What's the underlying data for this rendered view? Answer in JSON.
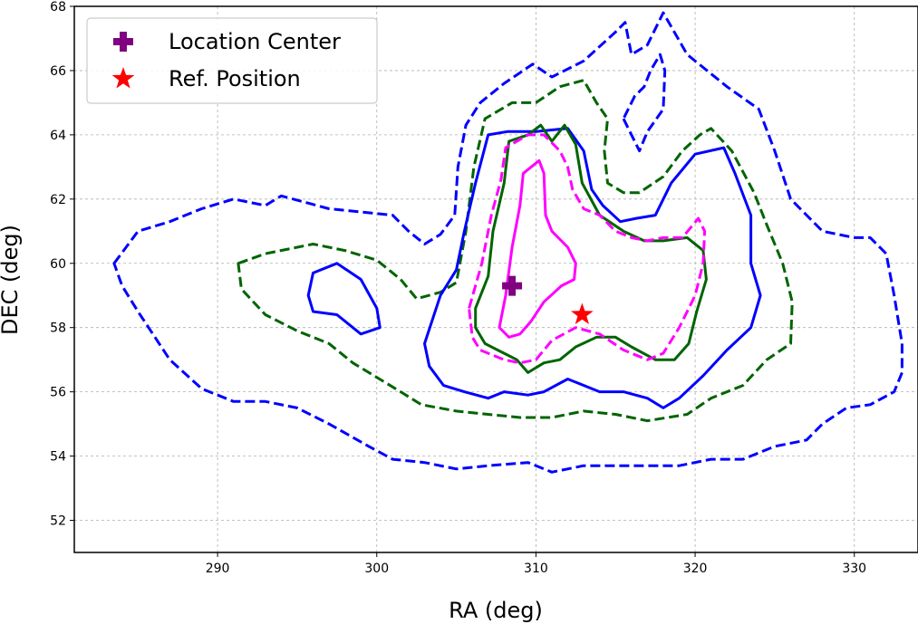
{
  "chart_data": {
    "type": "contour",
    "xlabel": "RA (deg)",
    "ylabel": "DEC (deg)",
    "xlim": [
      281,
      334
    ],
    "ylim": [
      51,
      68
    ],
    "xticks": [
      290,
      300,
      310,
      320,
      330
    ],
    "yticks": [
      52,
      54,
      56,
      58,
      60,
      62,
      64,
      66,
      68
    ],
    "grid": true,
    "legend_position": "top-left",
    "legend": [
      {
        "label": "Location Center",
        "marker": "plus",
        "color": "#800080"
      },
      {
        "label": "Ref. Position",
        "marker": "star",
        "color": "#ff0000"
      }
    ],
    "points": [
      {
        "name": "Location Center",
        "x": 308.5,
        "y": 59.3,
        "color": "#800080",
        "marker": "plus"
      },
      {
        "name": "Ref. Position",
        "x": 312.9,
        "y": 58.4,
        "color": "#ff0000",
        "marker": "star"
      }
    ],
    "contours": [
      {
        "color": "#0000ff",
        "style": "dashed",
        "points": [
          [
            283.5,
            60.0
          ],
          [
            285,
            61.0
          ],
          [
            287,
            61.3
          ],
          [
            289,
            61.7
          ],
          [
            291,
            62.0
          ],
          [
            293,
            61.8
          ],
          [
            294,
            62.1
          ],
          [
            297,
            61.7
          ],
          [
            299,
            61.6
          ],
          [
            301,
            61.5
          ],
          [
            302,
            61.0
          ],
          [
            303,
            60.6
          ],
          [
            304,
            60.9
          ],
          [
            304.9,
            61.5
          ],
          [
            305.1,
            63.0
          ],
          [
            305.6,
            64.3
          ],
          [
            306.5,
            65.0
          ],
          [
            308,
            65.6
          ],
          [
            309.8,
            66.2
          ],
          [
            311,
            65.8
          ],
          [
            313,
            66.3
          ],
          [
            315,
            67.2
          ],
          [
            315.6,
            67.5
          ],
          [
            316,
            66.5
          ],
          [
            317,
            66.8
          ],
          [
            318,
            67.8
          ],
          [
            319.5,
            66.5
          ],
          [
            322,
            65.5
          ],
          [
            324,
            64.8
          ],
          [
            325,
            63.5
          ],
          [
            326,
            62.0
          ],
          [
            328,
            61.0
          ],
          [
            330,
            60.8
          ],
          [
            331,
            60.8
          ],
          [
            332,
            60.3
          ],
          [
            332.5,
            59.0
          ],
          [
            333,
            57.5
          ],
          [
            333,
            56.6
          ],
          [
            332.5,
            56.0
          ],
          [
            331,
            55.6
          ],
          [
            329.5,
            55.5
          ],
          [
            328,
            55.0
          ],
          [
            327,
            54.5
          ],
          [
            325,
            54.3
          ],
          [
            323,
            53.9
          ],
          [
            321,
            53.9
          ],
          [
            319,
            53.7
          ],
          [
            317,
            53.7
          ],
          [
            315,
            53.7
          ],
          [
            313,
            53.7
          ],
          [
            311,
            53.5
          ],
          [
            309.5,
            53.8
          ],
          [
            307,
            53.7
          ],
          [
            305,
            53.6
          ],
          [
            303,
            53.8
          ],
          [
            301,
            53.9
          ],
          [
            299.5,
            54.3
          ],
          [
            297,
            55.0
          ],
          [
            295,
            55.5
          ],
          [
            293,
            55.7
          ],
          [
            291,
            55.7
          ],
          [
            289,
            56.1
          ],
          [
            287,
            57.0
          ],
          [
            285,
            58.5
          ],
          [
            284,
            59.3
          ],
          [
            283.5,
            60.0
          ]
        ]
      },
      {
        "color": "#0000ff",
        "style": "dashed",
        "points": [
          [
            315.5,
            64.5
          ],
          [
            316.5,
            63.5
          ],
          [
            317,
            64.1
          ],
          [
            318,
            64.8
          ],
          [
            318.1,
            66.0
          ],
          [
            317.8,
            66.5
          ],
          [
            317.2,
            66.0
          ],
          [
            316.8,
            65.5
          ],
          [
            316.2,
            65.2
          ],
          [
            315.5,
            64.5
          ]
        ]
      },
      {
        "color": "#006400",
        "style": "dashed",
        "points": [
          [
            291.3,
            60.0
          ],
          [
            293,
            60.3
          ],
          [
            296,
            60.6
          ],
          [
            298,
            60.4
          ],
          [
            300,
            60.1
          ],
          [
            301.5,
            59.5
          ],
          [
            302.5,
            58.9
          ],
          [
            304,
            59.1
          ],
          [
            305,
            59.4
          ],
          [
            305.6,
            61.0
          ],
          [
            306.1,
            63.0
          ],
          [
            306.8,
            64.5
          ],
          [
            308.5,
            65.0
          ],
          [
            310,
            65.0
          ],
          [
            311.5,
            65.5
          ],
          [
            313,
            65.7
          ],
          [
            313.8,
            65.0
          ],
          [
            314.5,
            64.5
          ],
          [
            314.3,
            63.5
          ],
          [
            314.5,
            62.5
          ],
          [
            315.5,
            62.2
          ],
          [
            316.5,
            62.2
          ],
          [
            318,
            62.7
          ],
          [
            319.2,
            63.5
          ],
          [
            320.3,
            64.0
          ],
          [
            321,
            64.2
          ],
          [
            322.3,
            63.5
          ],
          [
            323.7,
            62.2
          ],
          [
            324.5,
            61.2
          ],
          [
            325.5,
            60.0
          ],
          [
            326.1,
            58.8
          ],
          [
            326,
            57.5
          ],
          [
            324.5,
            57.0
          ],
          [
            323,
            56.2
          ],
          [
            321,
            55.8
          ],
          [
            319.5,
            55.3
          ],
          [
            317,
            55.1
          ],
          [
            315,
            55.3
          ],
          [
            313,
            55.4
          ],
          [
            311,
            55.2
          ],
          [
            309,
            55.2
          ],
          [
            307,
            55.3
          ],
          [
            305,
            55.4
          ],
          [
            302.8,
            55.6
          ],
          [
            301.5,
            56.0
          ],
          [
            298.5,
            56.9
          ],
          [
            297,
            57.5
          ],
          [
            295,
            57.9
          ],
          [
            293,
            58.4
          ],
          [
            291.5,
            59.2
          ],
          [
            291.3,
            60.0
          ]
        ]
      },
      {
        "color": "#0000ff",
        "style": "solid",
        "points": [
          [
            303,
            57.5
          ],
          [
            304,
            59.0
          ],
          [
            305,
            59.8
          ],
          [
            305.5,
            61.0
          ],
          [
            306.2,
            62.5
          ],
          [
            307,
            64.0
          ],
          [
            308.2,
            64.1
          ],
          [
            309,
            64.1
          ],
          [
            310,
            64.1
          ],
          [
            312,
            64.2
          ],
          [
            313,
            63.5
          ],
          [
            313.5,
            62.3
          ],
          [
            314.2,
            61.8
          ],
          [
            315.3,
            61.3
          ],
          [
            316.3,
            61.4
          ],
          [
            317.5,
            61.5
          ],
          [
            318.5,
            62.5
          ],
          [
            320,
            63.4
          ],
          [
            321.8,
            63.6
          ],
          [
            322.5,
            62.8
          ],
          [
            323.5,
            61.5
          ],
          [
            323.5,
            60.0
          ],
          [
            324.1,
            59.0
          ],
          [
            323.5,
            58.0
          ],
          [
            322,
            57.3
          ],
          [
            320.5,
            56.5
          ],
          [
            319,
            55.8
          ],
          [
            318,
            55.5
          ],
          [
            317,
            55.8
          ],
          [
            315.5,
            56.0
          ],
          [
            314,
            56.0
          ],
          [
            312,
            56.4
          ],
          [
            310.5,
            56.0
          ],
          [
            309.5,
            55.9
          ],
          [
            308,
            56.0
          ],
          [
            307,
            55.8
          ],
          [
            305.5,
            56.0
          ],
          [
            304.2,
            56.2
          ],
          [
            303.3,
            56.8
          ],
          [
            303,
            57.5
          ]
        ]
      },
      {
        "color": "#0000ff",
        "style": "solid",
        "points": [
          [
            296,
            59.7
          ],
          [
            297.5,
            60.0
          ],
          [
            299,
            59.5
          ],
          [
            300,
            58.6
          ],
          [
            300.2,
            58.0
          ],
          [
            299,
            57.8
          ],
          [
            297.5,
            58.4
          ],
          [
            296,
            58.5
          ],
          [
            295.7,
            59.0
          ],
          [
            296,
            59.7
          ]
        ]
      },
      {
        "color": "#006400",
        "style": "solid",
        "points": [
          [
            306.2,
            58.6
          ],
          [
            307,
            59.6
          ],
          [
            307.3,
            61.0
          ],
          [
            308,
            62.5
          ],
          [
            308.3,
            63.8
          ],
          [
            309.5,
            64.0
          ],
          [
            310.3,
            64.3
          ],
          [
            311,
            63.8
          ],
          [
            311.8,
            64.3
          ],
          [
            312.5,
            63.7
          ],
          [
            312.9,
            62.5
          ],
          [
            314,
            61.5
          ],
          [
            315.5,
            61.0
          ],
          [
            316.8,
            60.7
          ],
          [
            318,
            60.7
          ],
          [
            319.5,
            60.8
          ],
          [
            320.5,
            60.4
          ],
          [
            320.7,
            59.5
          ],
          [
            320.1,
            58.5
          ],
          [
            319.6,
            57.5
          ],
          [
            318.7,
            57.0
          ],
          [
            317.5,
            57.0
          ],
          [
            316,
            57.4
          ],
          [
            315,
            57.7
          ],
          [
            313.8,
            57.7
          ],
          [
            312.5,
            57.4
          ],
          [
            311.5,
            57.0
          ],
          [
            310.5,
            56.9
          ],
          [
            309.5,
            56.6
          ],
          [
            308.8,
            57.0
          ],
          [
            308,
            57.2
          ],
          [
            306.8,
            57.5
          ],
          [
            306.2,
            58.0
          ],
          [
            306.2,
            58.6
          ]
        ]
      },
      {
        "color": "#ff00ff",
        "style": "dashed",
        "points": [
          [
            305.8,
            58.6
          ],
          [
            306.6,
            60.0
          ],
          [
            307.2,
            61.5
          ],
          [
            307.8,
            62.6
          ],
          [
            308.1,
            63.6
          ],
          [
            309.5,
            64.0
          ],
          [
            310.5,
            64.0
          ],
          [
            311.5,
            63.5
          ],
          [
            312,
            63.0
          ],
          [
            312.3,
            62.3
          ],
          [
            313,
            61.7
          ],
          [
            314,
            61.5
          ],
          [
            315,
            61.0
          ],
          [
            316,
            60.8
          ],
          [
            317,
            60.7
          ],
          [
            318,
            60.8
          ],
          [
            319.2,
            60.8
          ],
          [
            320.2,
            61.4
          ],
          [
            320.6,
            61.0
          ],
          [
            320.5,
            60.0
          ],
          [
            320,
            59.0
          ],
          [
            319,
            58.0
          ],
          [
            318,
            57.2
          ],
          [
            317,
            57.0
          ],
          [
            315.5,
            57.3
          ],
          [
            314,
            57.8
          ],
          [
            312.5,
            58.0
          ],
          [
            311,
            57.6
          ],
          [
            310,
            57.0
          ],
          [
            309,
            56.9
          ],
          [
            308,
            57.0
          ],
          [
            306.5,
            57.3
          ],
          [
            306,
            57.7
          ],
          [
            305.8,
            58.6
          ]
        ]
      },
      {
        "color": "#ff00ff",
        "style": "solid",
        "points": [
          [
            307.7,
            58.0
          ],
          [
            308.1,
            59.0
          ],
          [
            308.5,
            60.5
          ],
          [
            309,
            61.8
          ],
          [
            309.2,
            62.8
          ],
          [
            310.2,
            63.2
          ],
          [
            310.5,
            62.8
          ],
          [
            310.6,
            61.5
          ],
          [
            311,
            61.0
          ],
          [
            312,
            60.5
          ],
          [
            312.5,
            60.0
          ],
          [
            312.4,
            59.5
          ],
          [
            311.6,
            59.3
          ],
          [
            310.5,
            58.8
          ],
          [
            309.7,
            58.2
          ],
          [
            309,
            57.8
          ],
          [
            308.3,
            57.7
          ],
          [
            307.7,
            58.0
          ]
        ]
      }
    ]
  }
}
